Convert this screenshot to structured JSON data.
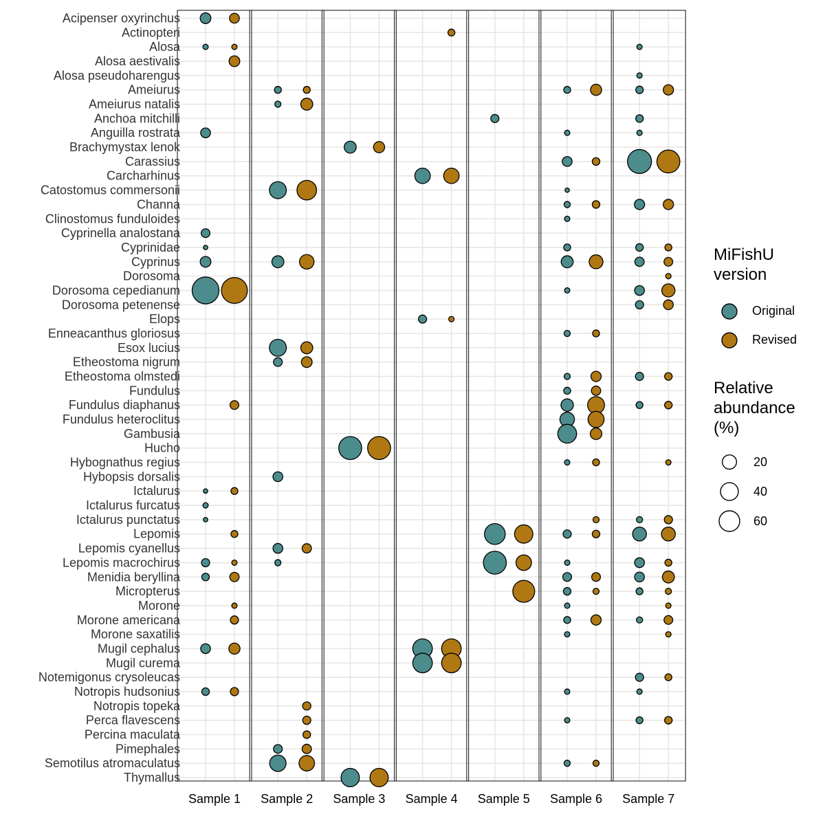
{
  "chart_data": {
    "type": "bubble",
    "panels": [
      "Sample 1",
      "Sample 2",
      "Sample 3",
      "Sample 4",
      "Sample 5",
      "Sample 6",
      "Sample 7"
    ],
    "x_categories": [
      "Original",
      "Revised"
    ],
    "categories": [
      "Acipenser oxyrinchus",
      "Actinopteri",
      "Alosa",
      "Alosa aestivalis",
      "Alosa pseudoharengus",
      "Ameiurus",
      "Ameiurus natalis",
      "Anchoa mitchilli",
      "Anguilla rostrata",
      "Brachymystax lenok",
      "Carassius",
      "Carcharhinus",
      "Catostomus commersonii",
      "Channa",
      "Clinostomus funduloides",
      "Cyprinella analostana",
      "Cyprinidae",
      "Cyprinus",
      "Dorosoma",
      "Dorosoma cepedianum",
      "Dorosoma petenense",
      "Elops",
      "Enneacanthus gloriosus",
      "Esox lucius",
      "Etheostoma nigrum",
      "Etheostoma olmstedi",
      "Fundulus",
      "Fundulus diaphanus",
      "Fundulus heteroclitus",
      "Gambusia",
      "Hucho",
      "Hybognathus regius",
      "Hybopsis dorsalis",
      "Ictalurus",
      "Ictalurus furcatus",
      "Ictalurus punctatus",
      "Lepomis",
      "Lepomis cyanellus",
      "Lepomis macrochirus",
      "Menidia beryllina",
      "Micropterus",
      "Morone",
      "Morone americana",
      "Morone saxatilis",
      "Mugil cephalus",
      "Mugil curema",
      "Notemigonus crysoleucas",
      "Notropis hudsonius",
      "Notropis topeka",
      "Perca flavescens",
      "Percina maculata",
      "Pimephales",
      "Semotilus atromaculatus",
      "Thymallus"
    ],
    "colors": {
      "Original": "#4d8c8c",
      "Revised": "#b07813"
    },
    "points": [
      [
        "Acipenser oxyrinchus",
        1,
        12,
        10
      ],
      [
        "Alosa",
        1,
        3,
        3
      ],
      [
        "Alosa aestivalis",
        1,
        null,
        12
      ],
      [
        "Anguilla rostrata",
        1,
        10,
        null
      ],
      [
        "Cyprinella analostana",
        1,
        8,
        null
      ],
      [
        "Cyprinidae",
        1,
        2,
        null
      ],
      [
        "Cyprinus",
        1,
        12,
        null
      ],
      [
        "Dorosoma cepedianum",
        1,
        75,
        70
      ],
      [
        "Fundulus diaphanus",
        1,
        null,
        8
      ],
      [
        "Ictalurus",
        1,
        2,
        5
      ],
      [
        "Ictalurus furcatus",
        1,
        3,
        null
      ],
      [
        "Ictalurus punctatus",
        1,
        2,
        null
      ],
      [
        "Lepomis",
        1,
        null,
        5
      ],
      [
        "Lepomis macrochirus",
        1,
        7,
        3
      ],
      [
        "Menidia beryllina",
        1,
        6,
        9
      ],
      [
        "Morone",
        1,
        null,
        3
      ],
      [
        "Morone americana",
        1,
        null,
        7
      ],
      [
        "Mugil cephalus",
        1,
        10,
        13
      ],
      [
        "Notropis hudsonius",
        1,
        6,
        7
      ],
      [
        "Ameiurus",
        2,
        5,
        5
      ],
      [
        "Ameiurus natalis",
        2,
        4,
        15
      ],
      [
        "Catostomus commersonii",
        2,
        30,
        40
      ],
      [
        "Cyprinus",
        2,
        15,
        22
      ],
      [
        "Esox lucius",
        2,
        30,
        15
      ],
      [
        "Etheostoma nigrum",
        2,
        8,
        12
      ],
      [
        "Hybopsis dorsalis",
        2,
        10,
        null
      ],
      [
        "Lepomis cyanellus",
        2,
        10,
        9
      ],
      [
        "Lepomis macrochirus",
        2,
        4,
        null
      ],
      [
        "Notropis topeka",
        2,
        null,
        7
      ],
      [
        "Perca flavescens",
        2,
        null,
        7
      ],
      [
        "Percina maculata",
        2,
        null,
        6
      ],
      [
        "Pimephales",
        2,
        8,
        9
      ],
      [
        "Semotilus atromaculatus",
        2,
        28,
        25
      ],
      [
        "Brachymystax lenok",
        3,
        15,
        13
      ],
      [
        "Hucho",
        3,
        55,
        55
      ],
      [
        "Thymallus",
        3,
        35,
        35
      ],
      [
        "Actinopteri",
        4,
        null,
        5
      ],
      [
        "Carcharhinus",
        4,
        25,
        25
      ],
      [
        "Elops",
        4,
        7,
        3
      ],
      [
        "Mugil cephalus",
        4,
        40,
        40
      ],
      [
        "Mugil curema",
        4,
        40,
        40
      ],
      [
        "Anchoa mitchilli",
        5,
        7,
        null
      ],
      [
        "Lepomis",
        5,
        45,
        35
      ],
      [
        "Lepomis macrochirus",
        5,
        55,
        25
      ],
      [
        "Micropterus",
        5,
        null,
        50
      ],
      [
        "Ameiurus",
        6,
        5,
        13
      ],
      [
        "Anguilla rostrata",
        6,
        3,
        null
      ],
      [
        "Carassius",
        6,
        10,
        6
      ],
      [
        "Catostomus commersonii",
        6,
        2,
        null
      ],
      [
        "Channa",
        6,
        4,
        6
      ],
      [
        "Clinostomus funduloides",
        6,
        3,
        null
      ],
      [
        "Cyprinidae",
        6,
        5,
        null
      ],
      [
        "Cyprinus",
        6,
        15,
        20
      ],
      [
        "Dorosoma cepedianum",
        6,
        3,
        null
      ],
      [
        "Elops",
        6,
        null,
        null
      ],
      [
        "Enneacanthus gloriosus",
        6,
        4,
        5
      ],
      [
        "Etheostoma olmstedi",
        6,
        4,
        11
      ],
      [
        "Fundulus",
        6,
        5,
        9
      ],
      [
        "Fundulus diaphanus",
        6,
        16,
        30
      ],
      [
        "Fundulus heteroclitus",
        6,
        22,
        27
      ],
      [
        "Gambusia",
        6,
        37,
        14
      ],
      [
        "Hybognathus regius",
        6,
        3,
        5
      ],
      [
        "Ictalurus punctatus",
        6,
        null,
        4
      ],
      [
        "Lepomis",
        6,
        7,
        6
      ],
      [
        "Lepomis macrochirus",
        6,
        3,
        null
      ],
      [
        "Menidia beryllina",
        6,
        8,
        8
      ],
      [
        "Micropterus",
        6,
        6,
        4
      ],
      [
        "Morone",
        6,
        3,
        null
      ],
      [
        "Morone americana",
        6,
        5,
        11
      ],
      [
        "Morone saxatilis",
        6,
        3,
        null
      ],
      [
        "Notropis hudsonius",
        6,
        3,
        null
      ],
      [
        "Perca flavescens",
        6,
        3,
        null
      ],
      [
        "Semotilus atromaculatus",
        6,
        4,
        4
      ],
      [
        "Alosa",
        7,
        3,
        null
      ],
      [
        "Alosa pseudoharengus",
        7,
        3,
        null
      ],
      [
        "Ameiurus",
        7,
        6,
        11
      ],
      [
        "Anchoa mitchilli",
        7,
        6,
        null
      ],
      [
        "Anguilla rostrata",
        7,
        3,
        null
      ],
      [
        "Carassius",
        7,
        60,
        55
      ],
      [
        "Channa",
        7,
        11,
        11
      ],
      [
        "Cyprinidae",
        7,
        6,
        5
      ],
      [
        "Cyprinus",
        7,
        9,
        8
      ],
      [
        "Dorosoma",
        7,
        null,
        3
      ],
      [
        "Dorosoma cepedianum",
        7,
        10,
        18
      ],
      [
        "Dorosoma petenense",
        7,
        7,
        10
      ],
      [
        "Etheostoma olmstedi",
        7,
        7,
        6
      ],
      [
        "Fundulus diaphanus",
        7,
        5,
        6
      ],
      [
        "Hybognathus regius",
        7,
        null,
        3
      ],
      [
        "Ictalurus punctatus",
        7,
        4,
        7
      ],
      [
        "Lepomis",
        7,
        20,
        20
      ],
      [
        "Lepomis macrochirus",
        7,
        10,
        5
      ],
      [
        "Menidia beryllina",
        7,
        10,
        15
      ],
      [
        "Micropterus",
        7,
        5,
        4
      ],
      [
        "Morone",
        7,
        null,
        3
      ],
      [
        "Morone americana",
        7,
        4,
        8
      ],
      [
        "Morone saxatilis",
        7,
        null,
        3
      ],
      [
        "Notemigonus crysoleucas",
        7,
        7,
        5
      ],
      [
        "Notropis hudsonius",
        7,
        3,
        null
      ],
      [
        "Perca flavescens",
        7,
        5,
        6
      ]
    ],
    "size_scale_max": 75,
    "xlabel": "",
    "ylabel": ""
  },
  "legend": {
    "version_title_line1": "MiFishU",
    "version_title_line2": "version",
    "original_label": "Original",
    "revised_label": "Revised",
    "size_title_line1": "Relative",
    "size_title_line2": "abundance",
    "size_title_line3": "(%)",
    "size_label_1": "20",
    "size_label_2": "40",
    "size_label_3": "60",
    "size_value_1": 20,
    "size_value_2": 40,
    "size_value_3": 60
  }
}
